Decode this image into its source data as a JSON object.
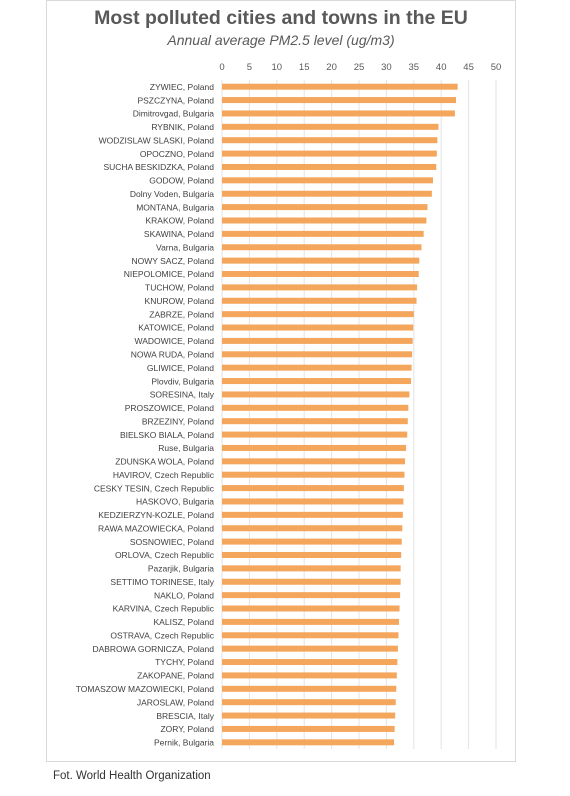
{
  "chart_data": {
    "type": "bar",
    "orientation": "horizontal",
    "title": "Most polluted cities and towns in the EU",
    "subtitle": "Annual average PM2.5 level (ug/m3)",
    "xlabel": "",
    "ylabel": "",
    "xlim": [
      0,
      50
    ],
    "ticks": [
      "0",
      "5",
      "10",
      "15",
      "20",
      "25",
      "30",
      "35",
      "40",
      "45",
      "50"
    ],
    "tick_values": [
      0,
      5,
      10,
      15,
      20,
      25,
      30,
      35,
      40,
      45,
      50
    ],
    "grid": true,
    "legend": "none",
    "bar_color": "#f4a65c",
    "categories": [
      "ZYWIEC, Poland",
      "PSZCZYNA, Poland",
      "Dimitrovgad, Bulgaria",
      "RYBNIK, Poland",
      "WODZISLAW SLASKI, Poland",
      "OPOCZNO, Poland",
      "SUCHA BESKIDZKA, Poland",
      "GODOW, Poland",
      "Dolny Voden, Bulgaria",
      "MONTANA, Bulgaria",
      "KRAKOW, Poland",
      "SKAWINA, Poland",
      "Varna, Bulgaria",
      "NOWY SACZ, Poland",
      "NIEPOLOMICE, Poland",
      "TUCHOW, Poland",
      "KNUROW, Poland",
      "ZABRZE, Poland",
      "KATOWICE, Poland",
      "WADOWICE, Poland",
      "NOWA RUDA, Poland",
      "GLIWICE, Poland",
      "Plovdiv, Bulgaria",
      "SORESINA, Italy",
      "PROSZOWICE, Poland",
      "BRZEZINY, Poland",
      "BIELSKO BIALA, Poland",
      "Ruse, Bulgaria",
      "ZDUNSKA WOLA, Poland",
      "HAVIROV, Czech Republic",
      "CESKY TESIN, Czech Republic",
      "HASKOVO, Bulgaria",
      "KEDZIERZYN-KOZLE, Poland",
      "RAWA MAZOWIECKA, Poland",
      "SOSNOWIEC, Poland",
      "ORLOVA, Czech Republic",
      "Pazarjik, Bulgaria",
      "SETTIMO TORINESE, Italy",
      "NAKLO, Poland",
      "KARVINA, Czech Republic",
      "KALISZ, Poland",
      "OSTRAVA, Czech Republic",
      "DABROWA GORNICZA, Poland",
      "TYCHY, Poland",
      "ZAKOPANE, Poland",
      "TOMASZOW MAZOWIECKI, Poland",
      "JAROSLAW, Poland",
      "BRESCIA, Italy",
      "ZORY, Poland",
      "Pernik, Bulgaria"
    ],
    "values": [
      43,
      42.7,
      42.5,
      39.5,
      39.3,
      39.2,
      39.1,
      38.5,
      38.3,
      37.5,
      37.3,
      36.8,
      36.4,
      36,
      35.9,
      35.6,
      35.5,
      35,
      34.9,
      34.8,
      34.7,
      34.6,
      34.5,
      34.2,
      34,
      33.9,
      33.8,
      33.6,
      33.4,
      33.3,
      33.2,
      33.1,
      33,
      32.9,
      32.8,
      32.7,
      32.6,
      32.6,
      32.5,
      32.4,
      32.3,
      32.2,
      32.1,
      32,
      31.9,
      31.8,
      31.7,
      31.6,
      31.5,
      31.4
    ]
  },
  "caption": "Fot. World Health Organization"
}
